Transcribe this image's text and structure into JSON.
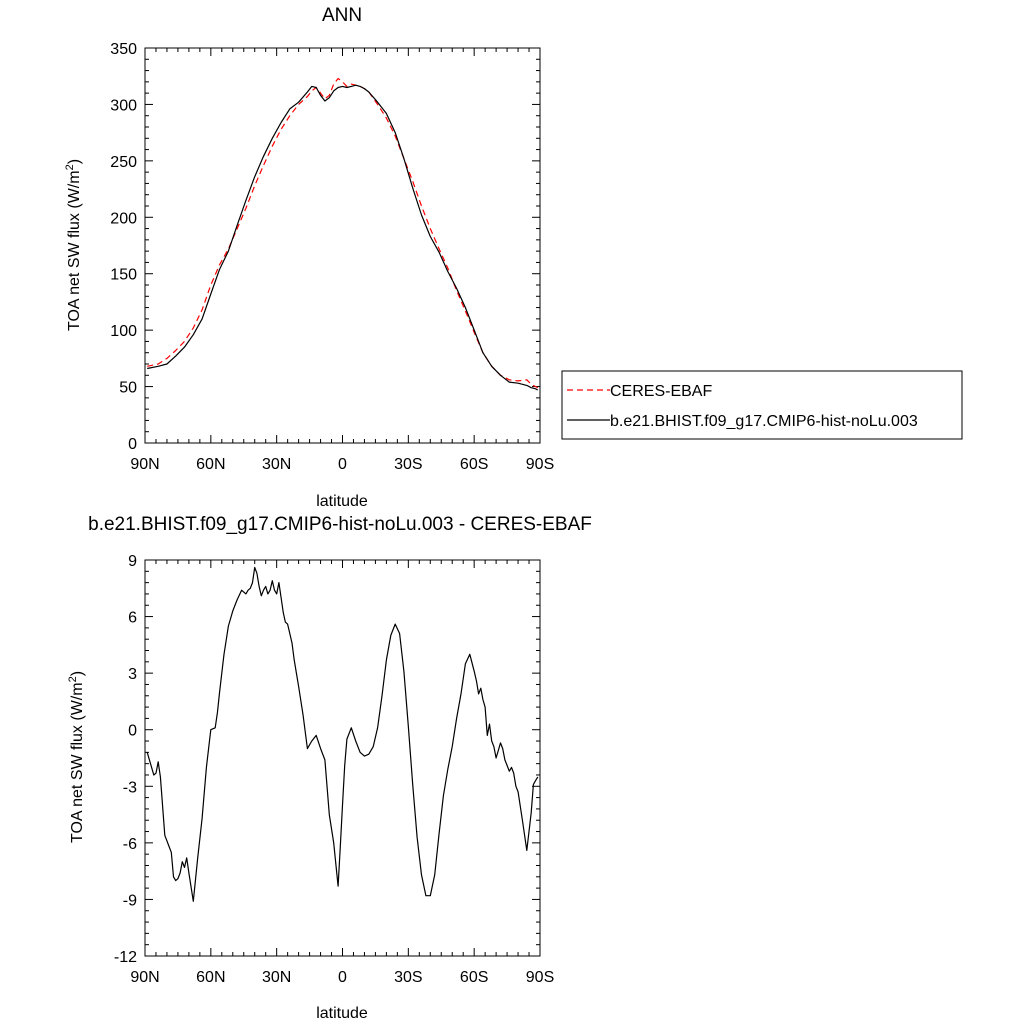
{
  "chart_data": [
    {
      "type": "line",
      "title": "ANN",
      "xlabel": "latitude",
      "ylabel": "TOA net SW flux (W/m²)",
      "ylabel_main": "TOA net SW flux (W/m",
      "ylabel_sup": "2",
      "ylabel_tail": ")",
      "xlim": [
        90,
        -90
      ],
      "ylim": [
        0,
        350
      ],
      "x_ticks": [
        90,
        60,
        30,
        0,
        -30,
        -60,
        -90
      ],
      "x_tick_labels": [
        "90N",
        "60N",
        "30N",
        "0",
        "30S",
        "60S",
        "90S"
      ],
      "y_ticks": [
        0,
        50,
        100,
        150,
        200,
        250,
        300,
        350
      ],
      "y_tick_labels": [
        "0",
        "50",
        "100",
        "150",
        "200",
        "250",
        "300",
        "350"
      ],
      "grid": false,
      "legend": "right",
      "series": [
        {
          "name": "CERES-EBAF",
          "color": "#ff0000",
          "dash": "dashed",
          "x": [
            89,
            84,
            80,
            76,
            72,
            68,
            64,
            60,
            56,
            52,
            48,
            44,
            40,
            36,
            32,
            28,
            24,
            20,
            16,
            14,
            12,
            10,
            8,
            6,
            4,
            2,
            0,
            -2,
            -4,
            -6,
            -8,
            -10,
            -12,
            -16,
            -20,
            -24,
            -28,
            -32,
            -36,
            -40,
            -44,
            -48,
            -52,
            -56,
            -60,
            -64,
            -68,
            -72,
            -76,
            -80,
            -84,
            -86,
            -88,
            -89
          ],
          "y": [
            68,
            70,
            75,
            82,
            90,
            102,
            118,
            140,
            158,
            172,
            190,
            208,
            228,
            246,
            263,
            278,
            290,
            300,
            307,
            312,
            315,
            310,
            305,
            308,
            318,
            323,
            320,
            316,
            318,
            317,
            316,
            314,
            311,
            300,
            288,
            272,
            252,
            232,
            210,
            190,
            172,
            155,
            135,
            117,
            98,
            80,
            68,
            60,
            56,
            55,
            56,
            52,
            50,
            49
          ]
        },
        {
          "name": "b.e21.BHIST.f09_g17.CMIP6-hist-noLu.003",
          "color": "#000000",
          "dash": "solid",
          "x": [
            89,
            84,
            80,
            76,
            72,
            68,
            64,
            60,
            56,
            52,
            48,
            44,
            40,
            36,
            32,
            28,
            24,
            20,
            16,
            14,
            12,
            10,
            8,
            6,
            4,
            2,
            0,
            -2,
            -4,
            -6,
            -8,
            -10,
            -12,
            -16,
            -20,
            -24,
            -28,
            -32,
            -36,
            -40,
            -44,
            -48,
            -52,
            -56,
            -60,
            -64,
            -68,
            -72,
            -76,
            -80,
            -84,
            -86,
            -88,
            -89
          ],
          "y": [
            66,
            68,
            70,
            77,
            85,
            96,
            110,
            132,
            154,
            170,
            193,
            215,
            236,
            254,
            270,
            284,
            296,
            302,
            311,
            316,
            315,
            308,
            303,
            306,
            312,
            315,
            316,
            315,
            316,
            317,
            316,
            314,
            311,
            302,
            292,
            275,
            252,
            226,
            202,
            183,
            169,
            152,
            137,
            120,
            100,
            80,
            68,
            60,
            54,
            53,
            51,
            49,
            48,
            47
          ]
        }
      ]
    },
    {
      "type": "line",
      "title": "b.e21.BHIST.f09_g17.CMIP6-hist-noLu.003 - CERES-EBAF",
      "xlabel": "latitude",
      "ylabel": "TOA net SW flux (W/m²)",
      "ylabel_main": "TOA net SW flux (W/m",
      "ylabel_sup": "2",
      "ylabel_tail": ")",
      "xlim": [
        90,
        -90
      ],
      "ylim": [
        -12,
        9
      ],
      "x_ticks": [
        90,
        60,
        30,
        0,
        -30,
        -60,
        -90
      ],
      "x_tick_labels": [
        "90N",
        "60N",
        "30N",
        "0",
        "30S",
        "60S",
        "90S"
      ],
      "y_ticks": [
        -12,
        -9,
        -6,
        -3,
        0,
        3,
        6,
        9
      ],
      "y_tick_labels": [
        "-12",
        "-9",
        "-6",
        "-3",
        "0",
        "3",
        "6",
        "9"
      ],
      "grid": false,
      "series": [
        {
          "color": "#000000",
          "dash": "solid",
          "x": [
            89,
            87,
            86,
            85,
            84,
            83,
            81,
            79,
            78,
            77,
            76,
            75,
            74,
            73,
            72,
            71,
            70,
            68,
            66,
            64,
            62,
            60,
            58,
            57,
            56,
            55,
            54,
            52,
            50,
            48,
            46,
            44,
            43,
            42,
            41,
            40,
            39,
            38,
            37,
            36,
            35,
            34,
            33,
            32,
            31,
            30,
            29,
            28,
            27,
            26,
            25,
            24,
            23,
            22,
            21,
            20,
            18,
            16,
            14,
            12,
            10,
            8,
            6,
            4,
            2,
            1,
            0,
            -1,
            -2,
            -4,
            -6,
            -8,
            -10,
            -12,
            -14,
            -16,
            -18,
            -20,
            -22,
            -24,
            -26,
            -28,
            -30,
            -32,
            -34,
            -36,
            -38,
            -40,
            -42,
            -44,
            -46,
            -48,
            -50,
            -52,
            -54,
            -56,
            -58,
            -60,
            -61,
            -62,
            -63,
            -64,
            -65,
            -66,
            -67,
            -68,
            -69,
            -70,
            -71,
            -72,
            -73,
            -74,
            -75,
            -76,
            -77,
            -78,
            -79,
            -80,
            -82,
            -84,
            -86,
            -87,
            -88,
            -89
          ],
          "y": [
            -1.2,
            -2.0,
            -2.4,
            -2.3,
            -1.7,
            -2.5,
            -5.6,
            -6.2,
            -6.5,
            -7.8,
            -8.0,
            -7.9,
            -7.6,
            -7.0,
            -7.3,
            -6.8,
            -7.6,
            -9.1,
            -6.8,
            -4.7,
            -2.0,
            0.0,
            0.1,
            0.9,
            2.0,
            3.0,
            4.0,
            5.5,
            6.3,
            6.9,
            7.4,
            7.2,
            7.4,
            7.5,
            7.8,
            8.6,
            8.3,
            7.6,
            7.1,
            7.4,
            7.6,
            7.2,
            7.4,
            7.9,
            7.4,
            7.2,
            7.8,
            7.0,
            6.2,
            5.7,
            5.6,
            5.1,
            4.6,
            3.7,
            3.0,
            2.3,
            0.8,
            -1.0,
            -0.6,
            -0.3,
            -1.0,
            -1.6,
            -4.5,
            -6.0,
            -8.3,
            -6.2,
            -4.0,
            -1.9,
            -0.5,
            0.1,
            -0.6,
            -1.2,
            -1.4,
            -1.3,
            -0.9,
            0.1,
            1.8,
            3.7,
            5.0,
            5.6,
            5.1,
            3.1,
            0.2,
            -2.9,
            -5.7,
            -7.7,
            -8.8,
            -8.8,
            -7.7,
            -5.5,
            -3.5,
            -2.1,
            -0.9,
            0.6,
            1.9,
            3.5,
            4.0,
            3.1,
            2.6,
            1.9,
            2.2,
            1.6,
            1.2,
            -0.3,
            0.3,
            -0.6,
            -0.9,
            -1.5,
            -1.1,
            -0.7,
            -1.0,
            -1.6,
            -1.9,
            -2.2,
            -2.0,
            -2.3,
            -3.0,
            -3.3,
            -4.8,
            -6.4,
            -4.4,
            -2.9,
            -2.7,
            -2.5
          ]
        }
      ]
    }
  ]
}
